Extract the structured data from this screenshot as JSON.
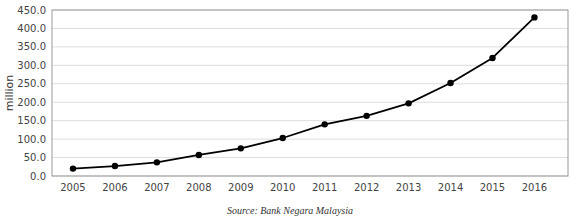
{
  "chart_data": {
    "type": "line",
    "x": [
      2005,
      2006,
      2007,
      2008,
      2009,
      2010,
      2011,
      2012,
      2013,
      2014,
      2015,
      2016
    ],
    "values": [
      20.0,
      27.0,
      37.0,
      57.0,
      75.0,
      103.0,
      140.0,
      163.0,
      197.0,
      252.0,
      320.0,
      430.0
    ],
    "color": "#000000",
    "marker": "circle",
    "y_label": "million",
    "xlim": [
      2004.5,
      2016.8
    ],
    "xticks": [
      2005,
      2006,
      2007,
      2008,
      2009,
      2010,
      2011,
      2012,
      2013,
      2014,
      2015,
      2016
    ],
    "ylim": [
      0,
      450
    ],
    "yticks": [
      {
        "value": 0,
        "label": "0.0"
      },
      {
        "value": 50,
        "label": "50.0"
      },
      {
        "value": 100,
        "label": "100.0"
      },
      {
        "value": 150,
        "label": "150.0"
      },
      {
        "value": 200,
        "label": "200.0"
      },
      {
        "value": 250,
        "label": "250.0"
      },
      {
        "value": 300,
        "label": "300.0"
      },
      {
        "value": 350,
        "label": "350.0"
      },
      {
        "value": 400,
        "label": "400.0"
      },
      {
        "value": 450,
        "label": "450.0"
      }
    ],
    "grid": true,
    "annotations": [
      "Source: Bank Negara Malaysia"
    ]
  }
}
